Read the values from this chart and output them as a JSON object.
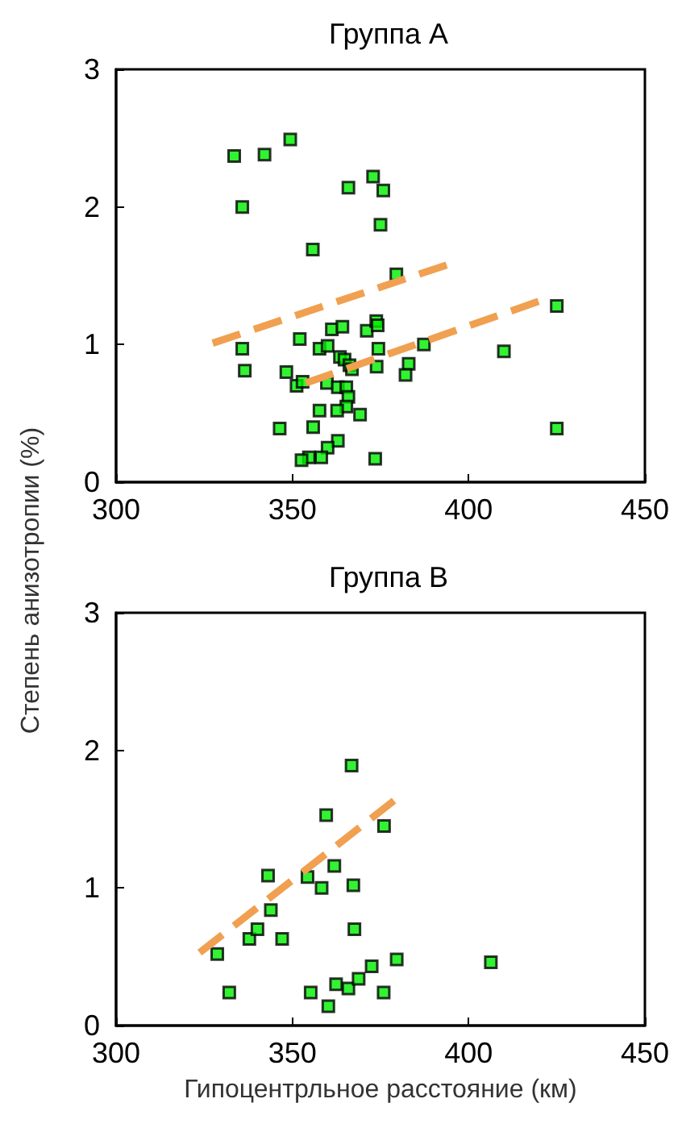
{
  "chart_data": [
    {
      "type": "scatter",
      "title": "Группа A",
      "xlim": [
        300,
        450
      ],
      "xticks": [
        300,
        350,
        400,
        450
      ],
      "ylim": [
        0,
        3
      ],
      "yticks": [
        0,
        1,
        2,
        3
      ],
      "series": [
        {
          "marker": "square",
          "color": "#00ee00",
          "x": [
            333.5,
            342.1,
            349.4,
            335.8,
            365.9,
            372.9,
            375.8,
            375.0,
            355.8,
            379.5,
            425.0,
            335.8,
            336.5,
            352.1,
            361.2,
            364.2,
            371.1,
            373.8,
            374.2,
            357.7,
            360.0,
            374.4,
            387.3,
            410.0,
            363.5,
            364.8,
            366.2,
            366.9,
            373.9,
            383.0,
            382.1,
            348.3,
            351.2,
            352.9,
            359.8,
            362.9,
            365.3,
            365.9,
            365.3,
            357.7,
            362.7,
            369.2,
            346.4,
            355.9,
            425.0,
            362.9,
            360.0,
            358.2,
            354.7,
            352.6,
            373.5
          ],
          "values": [
            2.37,
            2.38,
            2.49,
            2.0,
            2.14,
            2.22,
            2.12,
            1.87,
            1.69,
            1.51,
            1.28,
            0.97,
            0.81,
            1.04,
            1.11,
            1.13,
            1.1,
            1.17,
            1.14,
            0.97,
            0.99,
            0.97,
            1.0,
            0.95,
            0.91,
            0.89,
            0.85,
            0.82,
            0.84,
            0.86,
            0.78,
            0.8,
            0.7,
            0.73,
            0.72,
            0.69,
            0.69,
            0.62,
            0.55,
            0.52,
            0.52,
            0.49,
            0.39,
            0.4,
            0.39,
            0.3,
            0.25,
            0.18,
            0.18,
            0.16,
            0.17
          ]
        },
        {
          "type": "line",
          "marker": "none",
          "line_style": "dashed",
          "color": "#f0a050",
          "x": [
            327.4,
            394.0
          ],
          "values": [
            1.01,
            1.58
          ]
        },
        {
          "type": "line",
          "marker": "none",
          "line_style": "dashed",
          "color": "#f0a050",
          "x": [
            353.8,
            420.5
          ],
          "values": [
            0.72,
            1.32
          ]
        }
      ]
    },
    {
      "type": "scatter",
      "title": "Группа B",
      "xlabel": "Гипоцентрльное расстояние (км)",
      "ylabel": "Степень анизотропии (%)",
      "xlim": [
        300,
        450
      ],
      "xticks": [
        300,
        350,
        400,
        450
      ],
      "ylim": [
        0,
        3
      ],
      "yticks": [
        0,
        1,
        2,
        3
      ],
      "series": [
        {
          "marker": "square",
          "color": "#00ee00",
          "x": [
            328.7,
            332.1,
            337.8,
            340.1,
            343.1,
            343.9,
            347.1,
            354.3,
            355.2,
            358.3,
            359.6,
            361.9,
            360.2,
            362.4,
            365.9,
            366.8,
            367.3,
            367.6,
            368.8,
            372.5,
            376.0,
            375.9,
            379.6,
            406.3
          ],
          "values": [
            0.52,
            0.24,
            0.63,
            0.7,
            1.09,
            0.84,
            0.63,
            1.08,
            0.24,
            1.0,
            1.53,
            1.16,
            0.14,
            0.3,
            0.27,
            1.89,
            1.02,
            0.7,
            0.34,
            0.43,
            1.45,
            0.24,
            0.48,
            0.46
          ]
        },
        {
          "type": "line",
          "marker": "none",
          "line_style": "dashed",
          "color": "#f0a050",
          "x": [
            323.7,
            379.1
          ],
          "values": [
            0.53,
            1.64
          ]
        }
      ]
    }
  ]
}
